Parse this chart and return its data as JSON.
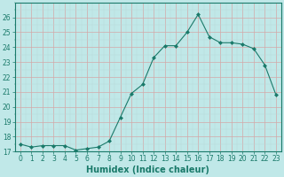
{
  "x": [
    0,
    1,
    2,
    3,
    4,
    5,
    6,
    7,
    8,
    9,
    10,
    11,
    12,
    13,
    14,
    15,
    16,
    17,
    18,
    19,
    20,
    21,
    22,
    23
  ],
  "y": [
    17.5,
    17.3,
    17.4,
    17.4,
    17.4,
    17.1,
    17.2,
    17.3,
    17.7,
    19.3,
    20.9,
    21.5,
    23.3,
    24.1,
    24.1,
    25.0,
    26.2,
    24.7,
    24.3,
    24.3,
    24.2,
    23.9,
    22.8,
    20.8
  ],
  "line_color": "#1a7a6a",
  "marker": "D",
  "marker_size": 2.0,
  "bg_color": "#c0e8e8",
  "xlabel": "Humidex (Indice chaleur)",
  "xlim": [
    -0.5,
    23.5
  ],
  "ylim": [
    17,
    27
  ],
  "yticks": [
    17,
    18,
    19,
    20,
    21,
    22,
    23,
    24,
    25,
    26
  ],
  "xticks": [
    0,
    1,
    2,
    3,
    4,
    5,
    6,
    7,
    8,
    9,
    10,
    11,
    12,
    13,
    14,
    15,
    16,
    17,
    18,
    19,
    20,
    21,
    22,
    23
  ],
  "tick_label_fontsize": 5.5,
  "xlabel_fontsize": 7.0,
  "major_grid_color": "#d4a8a8",
  "minor_grid_color": "#b8d8d8",
  "linewidth": 0.8
}
